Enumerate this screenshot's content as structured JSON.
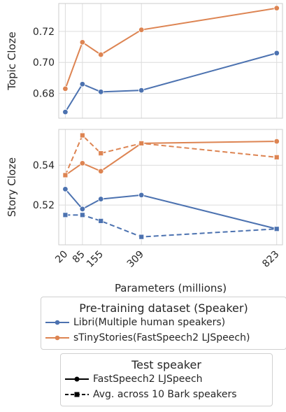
{
  "chart_data": [
    {
      "type": "line",
      "ylabel": "Topic Cloze",
      "x": [
        20,
        85,
        155,
        309,
        823
      ],
      "xlim": [
        -5,
        845
      ],
      "ylim": [
        0.664,
        0.738
      ],
      "yticks": [
        "0.68",
        "0.70",
        "0.72"
      ],
      "yticks_values": [
        0.68,
        0.7,
        0.72
      ],
      "grid": true,
      "series": [
        {
          "name": "Libri(Multiple human speakers)",
          "color": "#4c72b0",
          "style": "solid",
          "values": [
            0.668,
            0.686,
            0.681,
            0.682,
            0.706
          ]
        },
        {
          "name": "sTinyStories(FastSpeech2 LJSpeech)",
          "color": "#dd8452",
          "style": "solid",
          "values": [
            0.683,
            0.713,
            0.705,
            0.721,
            0.735
          ]
        }
      ]
    },
    {
      "type": "line",
      "ylabel": "Story Cloze",
      "xlabel": "Parameters (millions)",
      "x": [
        20,
        85,
        155,
        309,
        823
      ],
      "xlim": [
        -5,
        845
      ],
      "ylim": [
        0.5,
        0.558
      ],
      "yticks": [
        "0.52",
        "0.54"
      ],
      "yticks_values": [
        0.52,
        0.54
      ],
      "xticks": [
        "20",
        "85",
        "155",
        "309",
        "823"
      ],
      "grid": true,
      "series": [
        {
          "speaker": "Libri",
          "test": "FastSpeech2 LJSpeech",
          "color": "#4c72b0",
          "style": "solid",
          "values": [
            0.528,
            0.518,
            0.523,
            0.525,
            0.508
          ]
        },
        {
          "speaker": "Libri",
          "test": "Avg. across 10 Bark speakers",
          "color": "#4c72b0",
          "style": "dashed",
          "values": [
            0.515,
            0.515,
            0.512,
            0.504,
            0.508
          ]
        },
        {
          "speaker": "sTinyStories",
          "test": "FastSpeech2 LJSpeech",
          "color": "#dd8452",
          "style": "solid",
          "values": [
            0.535,
            0.541,
            0.537,
            0.551,
            0.552
          ]
        },
        {
          "speaker": "sTinyStories",
          "test": "Avg. across 10 Bark speakers",
          "color": "#dd8452",
          "style": "dashed",
          "values": [
            0.535,
            0.555,
            0.546,
            0.551,
            0.544
          ]
        }
      ]
    }
  ],
  "legend_dataset": {
    "title": "Pre-training dataset (Speaker)",
    "items": [
      {
        "label": "Libri(Multiple human speakers)",
        "color": "#4c72b0"
      },
      {
        "label": "sTinyStories(FastSpeech2 LJSpeech)",
        "color": "#dd8452"
      }
    ]
  },
  "legend_test": {
    "title": "Test speaker",
    "items": [
      {
        "label": "FastSpeech2 LJSpeech",
        "style": "solid",
        "marker": "circle"
      },
      {
        "label": "Avg. across 10 Bark speakers",
        "style": "dashed",
        "marker": "square"
      }
    ]
  }
}
